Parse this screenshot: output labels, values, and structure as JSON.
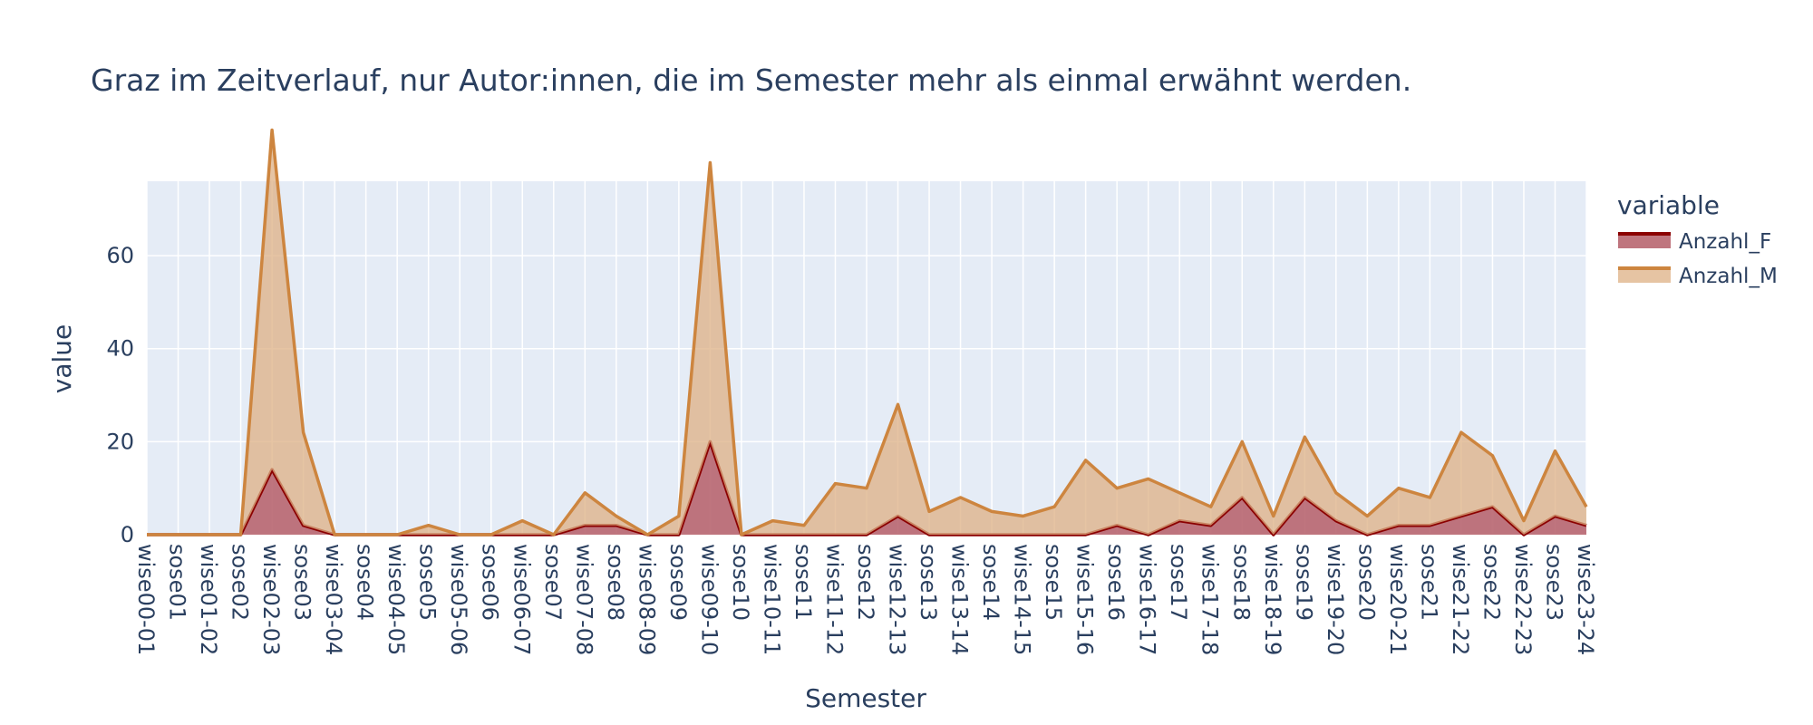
{
  "chart_data": {
    "type": "area",
    "title": "Graz im Zeitverlauf, nur Autor:innen, die im Semester mehr als einmal erwähnt werden.",
    "xlabel": "Semester",
    "ylabel": "value",
    "legend_title": "variable",
    "legend_position": "right",
    "grid": true,
    "ylim": [
      0,
      76
    ],
    "yticks": [
      0,
      20,
      40,
      60
    ],
    "categories": [
      "wise00-01",
      "sose01",
      "wise01-02",
      "sose02",
      "wise02-03",
      "sose03",
      "wise03-04",
      "sose04",
      "wise04-05",
      "sose05",
      "wise05-06",
      "sose06",
      "wise06-07",
      "sose07",
      "wise07-08",
      "sose08",
      "wise08-09",
      "sose09",
      "wise09-10",
      "sose10",
      "wise10-11",
      "sose11",
      "wise11-12",
      "sose12",
      "wise12-13",
      "sose13",
      "wise13-14",
      "sose14",
      "wise14-15",
      "sose15",
      "wise15-16",
      "sose16",
      "wise16-17",
      "sose17",
      "wise17-18",
      "sose18",
      "wise18-19",
      "sose19",
      "wise19-20",
      "sose20",
      "wise20-21",
      "sose21",
      "wise21-22",
      "sose22",
      "wise22-23",
      "sose23",
      "wise23-24"
    ],
    "series": [
      {
        "name": "Anzahl_F",
        "line_color": "#8b0000",
        "fill_color": "rgba(184,102,112,0.9)",
        "values": [
          0,
          0,
          0,
          0,
          14,
          2,
          0,
          0,
          0,
          0,
          0,
          0,
          0,
          0,
          2,
          2,
          0,
          0,
          20,
          0,
          0,
          0,
          0,
          0,
          4,
          0,
          0,
          0,
          0,
          0,
          0,
          2,
          0,
          3,
          2,
          8,
          0,
          8,
          3,
          0,
          2,
          2,
          4,
          6,
          0,
          4,
          2
        ]
      },
      {
        "name": "Anzahl_M",
        "line_color": "#cd853f",
        "fill_color": "rgba(222,176,132,0.75)",
        "values": [
          0,
          0,
          0,
          0,
          73,
          20,
          0,
          0,
          0,
          2,
          0,
          0,
          3,
          0,
          7,
          2,
          0,
          4,
          60,
          0,
          3,
          2,
          11,
          10,
          24,
          5,
          8,
          5,
          4,
          6,
          16,
          8,
          12,
          6,
          4,
          12,
          4,
          13,
          6,
          4,
          8,
          6,
          18,
          11,
          3,
          14,
          4
        ]
      }
    ]
  }
}
